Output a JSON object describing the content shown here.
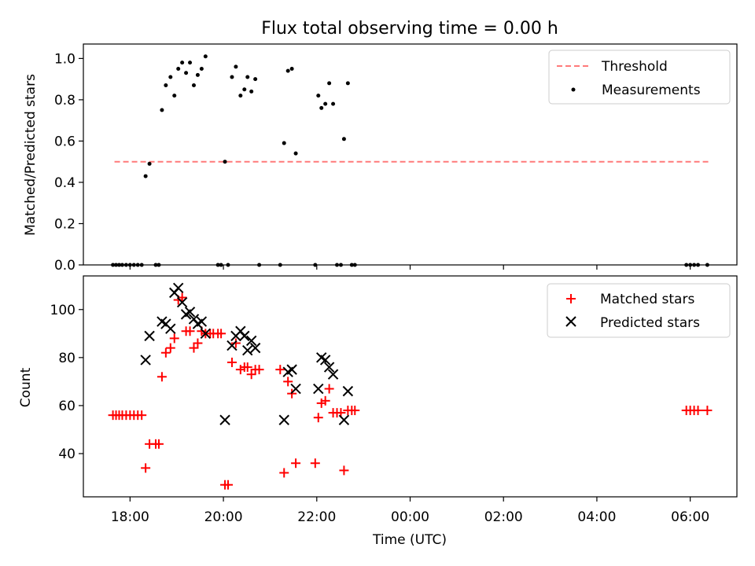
{
  "figure_title": "Flux total observing time = 0.00 h",
  "chart_data": [
    {
      "type": "scatter",
      "xlabel": "",
      "ylabel": "Matched/Predicted stars",
      "xlim": [
        "17:00",
        "07:00"
      ],
      "ylim": [
        0,
        1.07
      ],
      "yticks": [
        0.0,
        0.2,
        0.4,
        0.6,
        0.8,
        1.0
      ],
      "ytick_labels": [
        "0.0",
        "0.2",
        "0.4",
        "0.6",
        "0.8",
        "1.0"
      ],
      "legend": {
        "position": "top-right",
        "threshold_label": "Threshold",
        "measurements_label": "Measurements"
      },
      "threshold": {
        "value": 0.5,
        "x_start": "17:40",
        "x_end": "06:25",
        "color": "#ff7a7a"
      },
      "measurements": {
        "color": "#000000",
        "points": [
          [
            "17:38",
            0.0
          ],
          [
            "17:42",
            0.0
          ],
          [
            "17:46",
            0.0
          ],
          [
            "17:50",
            0.0
          ],
          [
            "17:55",
            0.0
          ],
          [
            "18:00",
            0.0
          ],
          [
            "18:05",
            0.0
          ],
          [
            "18:10",
            0.0
          ],
          [
            "18:15",
            0.0
          ],
          [
            "18:20",
            0.43
          ],
          [
            "18:25",
            0.49
          ],
          [
            "18:33",
            0.0
          ],
          [
            "18:37",
            0.0
          ],
          [
            "18:41",
            0.75
          ],
          [
            "18:46",
            0.87
          ],
          [
            "18:52",
            0.91
          ],
          [
            "18:57",
            0.82
          ],
          [
            "19:02",
            0.95
          ],
          [
            "19:07",
            0.98
          ],
          [
            "19:12",
            0.93
          ],
          [
            "19:17",
            0.98
          ],
          [
            "19:22",
            0.87
          ],
          [
            "19:27",
            0.92
          ],
          [
            "19:32",
            0.95
          ],
          [
            "19:37",
            1.01
          ],
          [
            "19:53",
            0.0
          ],
          [
            "19:57",
            0.0
          ],
          [
            "20:02",
            0.5
          ],
          [
            "20:06",
            0.0
          ],
          [
            "20:11",
            0.91
          ],
          [
            "20:16",
            0.96
          ],
          [
            "20:22",
            0.82
          ],
          [
            "20:27",
            0.85
          ],
          [
            "20:31",
            0.91
          ],
          [
            "20:36",
            0.84
          ],
          [
            "20:41",
            0.9
          ],
          [
            "20:46",
            0.0
          ],
          [
            "21:13",
            0.0
          ],
          [
            "21:18",
            0.59
          ],
          [
            "21:23",
            0.94
          ],
          [
            "21:28",
            0.95
          ],
          [
            "21:33",
            0.54
          ],
          [
            "21:58",
            0.0
          ],
          [
            "22:02",
            0.82
          ],
          [
            "22:06",
            0.76
          ],
          [
            "22:11",
            0.78
          ],
          [
            "22:16",
            0.88
          ],
          [
            "22:21",
            0.78
          ],
          [
            "22:26",
            0.0
          ],
          [
            "22:31",
            0.0
          ],
          [
            "22:35",
            0.61
          ],
          [
            "22:40",
            0.88
          ],
          [
            "22:45",
            0.0
          ],
          [
            "22:49",
            0.0
          ],
          [
            "05:55",
            0.0
          ],
          [
            "06:00",
            0.0
          ],
          [
            "06:05",
            0.0
          ],
          [
            "06:10",
            0.0
          ],
          [
            "06:22",
            0.0
          ]
        ]
      }
    },
    {
      "type": "scatter",
      "xlabel": "Time (UTC)",
      "ylabel": "Count",
      "xlim": [
        "17:00",
        "07:00"
      ],
      "ylim": [
        22,
        114
      ],
      "yticks": [
        40,
        60,
        80,
        100
      ],
      "ytick_labels": [
        "40",
        "60",
        "80",
        "100"
      ],
      "xticks": [
        "18:00",
        "20:00",
        "22:00",
        "00:00",
        "02:00",
        "04:00",
        "06:00"
      ],
      "xtick_labels": [
        "18:00",
        "20:00",
        "22:00",
        "00:00",
        "02:00",
        "04:00",
        "06:00"
      ],
      "legend": {
        "position": "top-right",
        "matched_label": "Matched stars",
        "predicted_label": "Predicted stars"
      },
      "matched": {
        "color": "#ff0000",
        "points": [
          [
            "17:38",
            56
          ],
          [
            "17:42",
            56
          ],
          [
            "17:46",
            56
          ],
          [
            "17:50",
            56
          ],
          [
            "17:55",
            56
          ],
          [
            "18:00",
            56
          ],
          [
            "18:05",
            56
          ],
          [
            "18:10",
            56
          ],
          [
            "18:15",
            56
          ],
          [
            "18:20",
            34
          ],
          [
            "18:25",
            44
          ],
          [
            "18:33",
            44
          ],
          [
            "18:37",
            44
          ],
          [
            "18:41",
            72
          ],
          [
            "18:46",
            82
          ],
          [
            "18:52",
            84
          ],
          [
            "18:57",
            88
          ],
          [
            "19:02",
            104
          ],
          [
            "19:07",
            105
          ],
          [
            "19:12",
            91
          ],
          [
            "19:17",
            91
          ],
          [
            "19:22",
            84
          ],
          [
            "19:27",
            86
          ],
          [
            "19:32",
            91
          ],
          [
            "19:37",
            90
          ],
          [
            "19:43",
            90
          ],
          [
            "19:47",
            90
          ],
          [
            "19:53",
            90
          ],
          [
            "19:57",
            90
          ],
          [
            "20:02",
            27
          ],
          [
            "20:06",
            27
          ],
          [
            "20:11",
            78
          ],
          [
            "20:16",
            86
          ],
          [
            "20:22",
            75
          ],
          [
            "20:27",
            76
          ],
          [
            "20:31",
            76
          ],
          [
            "20:36",
            73
          ],
          [
            "20:41",
            75
          ],
          [
            "20:46",
            75
          ],
          [
            "21:13",
            75
          ],
          [
            "21:18",
            32
          ],
          [
            "21:23",
            70
          ],
          [
            "21:28",
            65
          ],
          [
            "21:33",
            36
          ],
          [
            "21:58",
            36
          ],
          [
            "22:02",
            55
          ],
          [
            "22:06",
            61
          ],
          [
            "22:11",
            62
          ],
          [
            "22:16",
            67
          ],
          [
            "22:21",
            57
          ],
          [
            "22:26",
            57
          ],
          [
            "22:31",
            57
          ],
          [
            "22:35",
            33
          ],
          [
            "22:40",
            58
          ],
          [
            "22:45",
            58
          ],
          [
            "22:49",
            58
          ],
          [
            "05:55",
            58
          ],
          [
            "06:00",
            58
          ],
          [
            "06:05",
            58
          ],
          [
            "06:10",
            58
          ],
          [
            "06:22",
            58
          ]
        ]
      },
      "predicted": {
        "color": "#000000",
        "points": [
          [
            "18:20",
            79
          ],
          [
            "18:25",
            89
          ],
          [
            "18:41",
            95
          ],
          [
            "18:46",
            94
          ],
          [
            "18:52",
            92
          ],
          [
            "18:57",
            107
          ],
          [
            "19:02",
            109
          ],
          [
            "19:07",
            103
          ],
          [
            "19:12",
            98
          ],
          [
            "19:17",
            99
          ],
          [
            "19:22",
            96
          ],
          [
            "19:27",
            94
          ],
          [
            "19:32",
            95
          ],
          [
            "19:37",
            90
          ],
          [
            "20:02",
            54
          ],
          [
            "20:11",
            85
          ],
          [
            "20:16",
            89
          ],
          [
            "20:22",
            91
          ],
          [
            "20:27",
            89
          ],
          [
            "20:31",
            83
          ],
          [
            "20:36",
            87
          ],
          [
            "20:41",
            84
          ],
          [
            "21:18",
            54
          ],
          [
            "21:23",
            74
          ],
          [
            "21:28",
            75
          ],
          [
            "21:33",
            67
          ],
          [
            "22:02",
            67
          ],
          [
            "22:06",
            80
          ],
          [
            "22:11",
            79
          ],
          [
            "22:16",
            76
          ],
          [
            "22:21",
            73
          ],
          [
            "22:35",
            54
          ],
          [
            "22:40",
            66
          ]
        ]
      }
    }
  ]
}
